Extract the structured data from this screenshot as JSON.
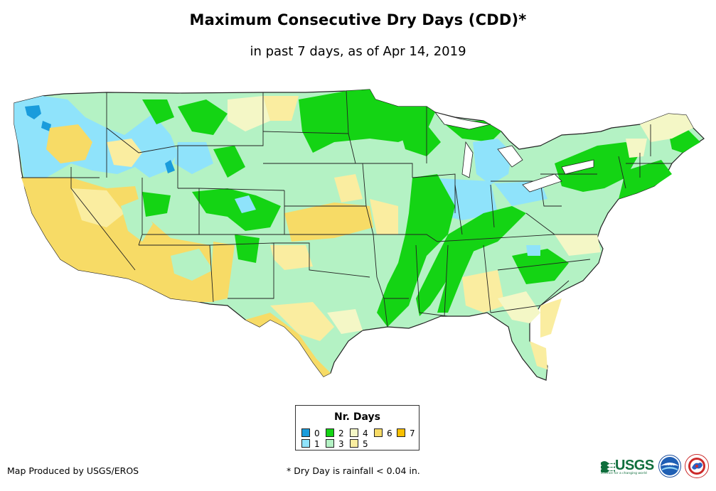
{
  "title": "Maximum Consecutive Dry Days (CDD)*",
  "subtitle": "in past 7 days, as of Apr 14, 2019",
  "legend": {
    "title": "Nr. Days",
    "items": [
      {
        "label": "0",
        "color": "#1a9cdc"
      },
      {
        "label": "1",
        "color": "#8fe3fb"
      },
      {
        "label": "2",
        "color": "#14d414"
      },
      {
        "label": "3",
        "color": "#b4f2c4"
      },
      {
        "label": "4",
        "color": "#f4f7c6"
      },
      {
        "label": "5",
        "color": "#faeda0"
      },
      {
        "label": "6",
        "color": "#f7db66"
      },
      {
        "label": "7",
        "color": "#f9c000"
      }
    ]
  },
  "credit": "Map Produced by USGS/EROS",
  "footnote": "* Dry Day is rainfall < 0.04 in.",
  "logos": {
    "usgs": "USGS",
    "usgs_tagline": "science for a changing world",
    "noaa": "noaa-logo",
    "nws": "nws-logo"
  },
  "map": {
    "region": "Contiguous United States",
    "base_color": "#b4f2c4",
    "border_color": "#222222"
  }
}
